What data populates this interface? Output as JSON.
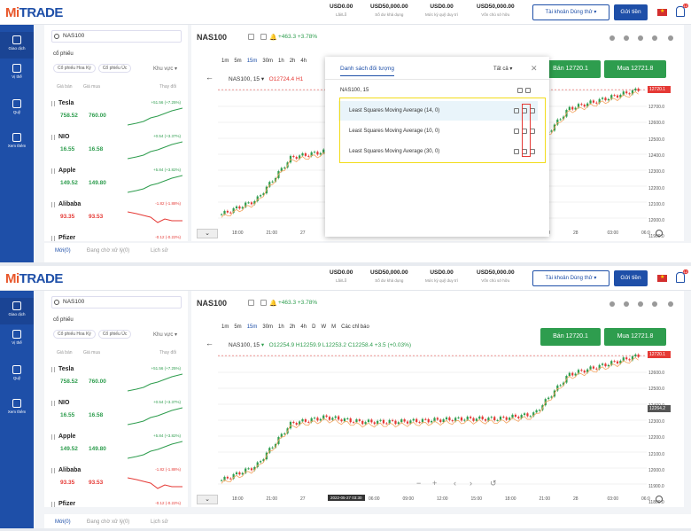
{
  "colors": {
    "brand": "#1e4fa8",
    "up": "#2e9d4e",
    "down": "#e53935",
    "highlight": "#f2dc1a",
    "annotation": "#e53935"
  },
  "header": {
    "logo": "MiTRADE",
    "stats": [
      {
        "value": "USD0.00",
        "label": "Lãi/Lỗ"
      },
      {
        "value": "USD50,000.00",
        "label": "Số dư khả dụng"
      },
      {
        "value": "USD0.00",
        "label": "Mức ký quỹ duy trì"
      },
      {
        "value": "USD50,000.00",
        "label": "Vốn chủ sở hữu"
      }
    ],
    "account_button": "Tài khoản Dùng thử",
    "deposit_button": "Gửi tiền",
    "notif_badge": "12"
  },
  "sidebar": [
    {
      "label": "Giao dịch",
      "icon": "chart-icon"
    },
    {
      "label": "Vị thế",
      "icon": "document-icon"
    },
    {
      "label": "Quỹ",
      "icon": "wallet-icon"
    },
    {
      "label": "Xem thêm",
      "icon": "grid-icon"
    }
  ],
  "watchlist": {
    "search_value": "NAS100",
    "category": "cổ phiếu",
    "chips": [
      "Cổ phiếu Hoa Kỳ",
      "Cổ phiếu Úc"
    ],
    "region": "Khu vực",
    "col_bid": "Giá bán",
    "col_ask": "Giá mua",
    "col_change": "Thay đổi",
    "rows": [
      {
        "name": "Tesla",
        "bid": "758.52",
        "ask": "760.00",
        "change": "+51.56 (+7.25%)",
        "dir": "up"
      },
      {
        "name": "NIO",
        "bid": "16.55",
        "ask": "16.58",
        "change": "+0.54 (+3.37%)",
        "dir": "up"
      },
      {
        "name": "Apple",
        "bid": "149.52",
        "ask": "149.80",
        "change": "+5.84 (+3.82%)",
        "dir": "up"
      },
      {
        "name": "Alibaba",
        "bid": "93.35",
        "ask": "93.53",
        "change": "-1.82 (-1.88%)",
        "dir": "down"
      },
      {
        "name": "Pfizer",
        "bid": "",
        "ask": "",
        "change": "-0.12 (-0.22%)",
        "dir": "down"
      }
    ]
  },
  "orders": {
    "tabs": [
      "Mới(0)",
      "Đang chờ xử lý(0)",
      "Lịch sử"
    ]
  },
  "chart": {
    "symbol": "NAS100",
    "change": "+463.3  +3.78%",
    "timeframes": [
      "1m",
      "5m",
      "15m",
      "30m",
      "1h",
      "2h",
      "4h",
      "D",
      "W",
      "M"
    ],
    "selected_tf": "15m",
    "indicators_label": "Các chỉ báo",
    "legend_symbol": "NAS100, 15",
    "legend_open_top": "O12724.4",
    "legend_high_top": "H1",
    "legend_ohlc_bottom": "O12254.9  H12259.9  L12253.2  C12258.4  +3.5 (+0.03%)",
    "sell_label": "Bán 12720.1",
    "buy_label": "Mua 12721.8",
    "price_ticks": [
      "12700.0",
      "12600.0",
      "12500.0",
      "12400.0",
      "12300.0",
      "12200.0",
      "12100.0",
      "12000.0",
      "11900.0"
    ],
    "price_ticks_bottom": [
      "12600.0",
      "12500.0",
      "12400.0",
      "12300.0",
      "12200.0",
      "12100.0",
      "12000.0",
      "11900.0",
      "11800.0"
    ],
    "last_price_tag": "12720.1",
    "cross_price_tag": "12264.2",
    "time_ticks": [
      "18:00",
      "21:00",
      "27",
      "03:00",
      "06:00",
      "09:00",
      "12:00",
      "15:00",
      "18:00",
      "21:00",
      "28",
      "03:00",
      "06:0"
    ],
    "cursor_time": "2022-05-27  03:30"
  },
  "dialog": {
    "title": "Danh sách đối tượng",
    "filter": "Tất cả",
    "main_series": "NAS100, 15",
    "items": [
      "Least Squares Moving Average (14, 0)",
      "Least Squares Moving Average (10, 0)",
      "Least Squares Moving Average (30, 0)"
    ]
  },
  "chart_data": {
    "type": "candlestick",
    "xlabel": "",
    "ylabel": "",
    "ylim": [
      11850,
      12760
    ],
    "x": [
      "18:00",
      "21:00",
      "27",
      "03:00",
      "06:00",
      "09:00",
      "12:00",
      "15:00",
      "18:00",
      "21:00",
      "28",
      "03:00",
      "06:00"
    ],
    "close": [
      11930,
      12020,
      12290,
      12330,
      12300,
      12300,
      12310,
      12320,
      12320,
      12350,
      12600,
      12660,
      12720
    ]
  }
}
